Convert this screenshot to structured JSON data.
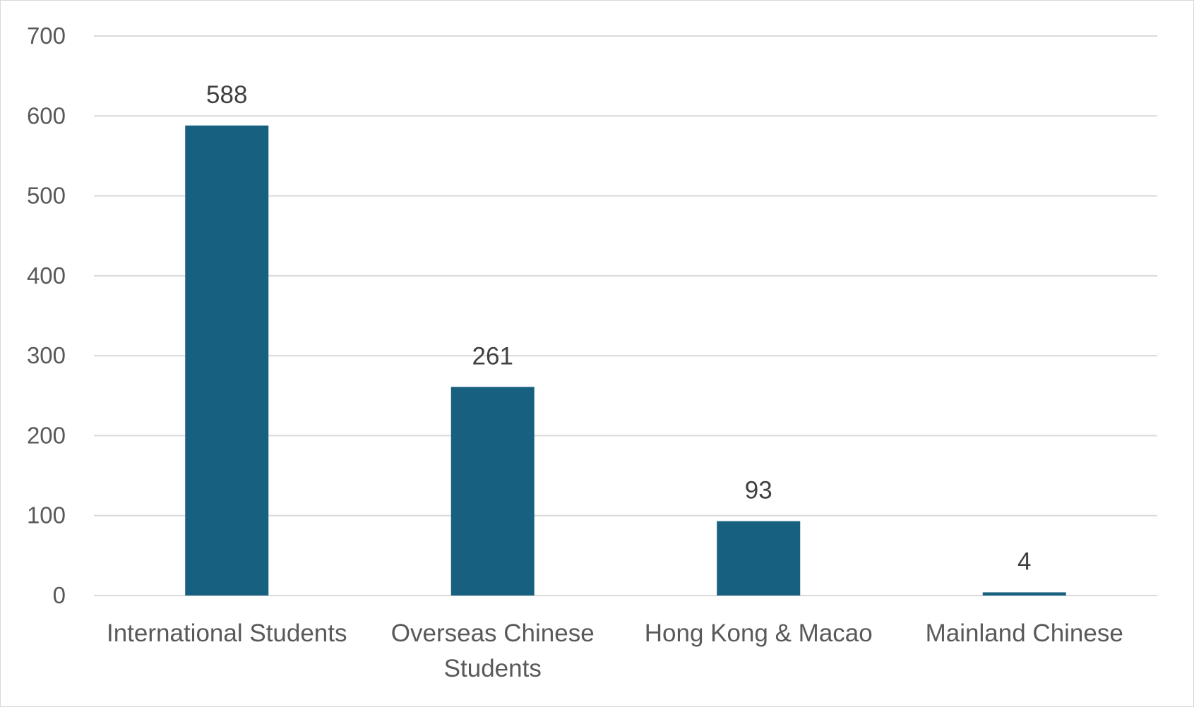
{
  "chart_data": {
    "type": "bar",
    "categories": [
      [
        "International Students"
      ],
      [
        "Overseas Chinese",
        "Students"
      ],
      [
        "Hong Kong & Macao"
      ],
      [
        "Mainland Chinese"
      ]
    ],
    "values": [
      588,
      261,
      93,
      4
    ],
    "data_labels": [
      "588",
      "261",
      "93",
      "4"
    ],
    "y_ticks": [
      "0",
      "100",
      "200",
      "300",
      "400",
      "500",
      "600",
      "700"
    ],
    "ylim": [
      0,
      700
    ],
    "y_tick_step": 100,
    "grid": true,
    "legend": "none",
    "bar_color": "#17607f",
    "title": "",
    "xlabel": "",
    "ylabel": ""
  }
}
